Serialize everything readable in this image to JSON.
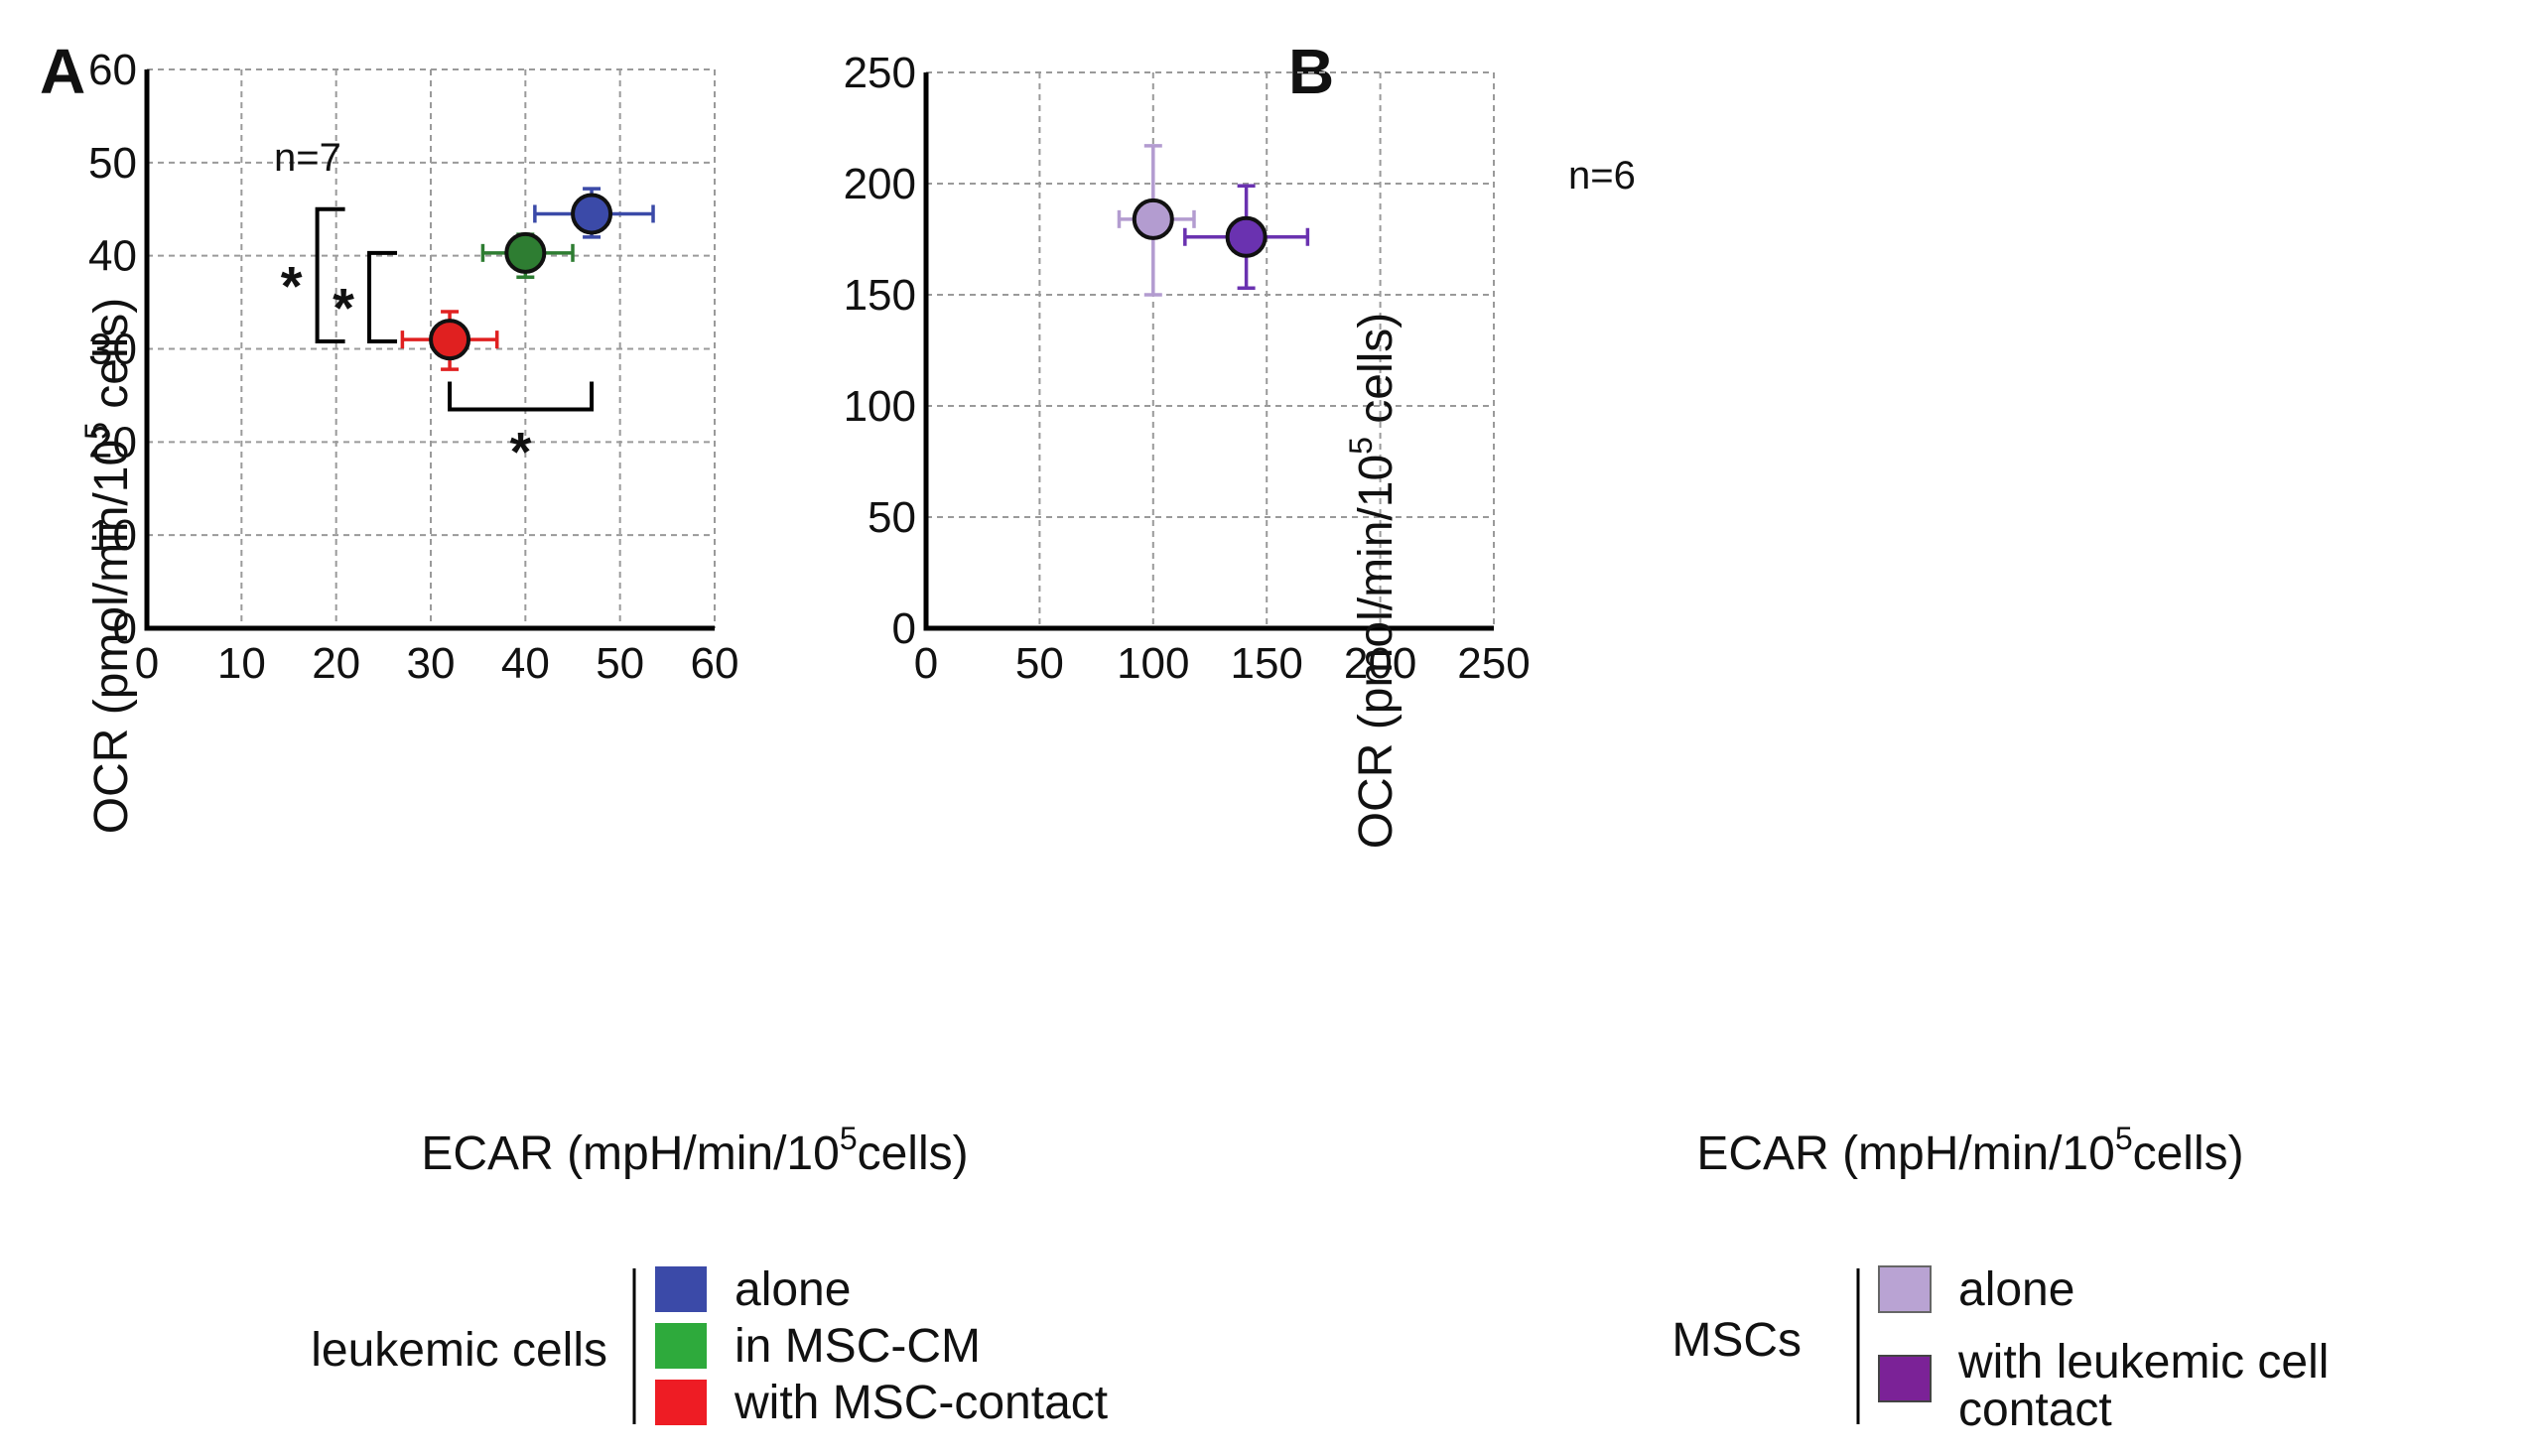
{
  "chart_data": [
    {
      "type": "scatter",
      "panel": "A",
      "xlabel_main": "ECAR (mpH/min/10",
      "xlabel_sup": "5",
      "xlabel_tail": "cells)",
      "ylabel_main": "OCR (pmol/min/10",
      "ylabel_sup": "5",
      "ylabel_tail": " cells)",
      "xlim": [
        0,
        60
      ],
      "ylim": [
        0,
        60
      ],
      "xticks": [
        "0",
        "10",
        "20",
        "30",
        "40",
        "50",
        "60"
      ],
      "yticks": [
        "0",
        "10",
        "20",
        "30",
        "40",
        "50",
        "60"
      ],
      "grid": true,
      "annotation": "n=7",
      "series": [
        {
          "name": "alone",
          "color": "#3b4aa8",
          "x": 47,
          "y": 44.5,
          "xerr": [
            41,
            53.5
          ],
          "yerr": [
            42,
            47.2
          ]
        },
        {
          "name": "in MSC-CM",
          "color": "#2e7d32",
          "x": 40,
          "y": 40.3,
          "xerr": [
            35.5,
            45
          ],
          "yerr": [
            37.7,
            42.3
          ]
        },
        {
          "name": "with MSC-contact",
          "color": "#e02020",
          "x": 32,
          "y": 31,
          "xerr": [
            27,
            37
          ],
          "yerr": [
            27.8,
            34
          ]
        }
      ],
      "significance": [
        {
          "label": "*",
          "orientation": "vertical",
          "from": 30.8,
          "to": 45,
          "at_x": 18
        },
        {
          "label": "*",
          "orientation": "vertical",
          "from": 30.8,
          "to": 40.3,
          "at_x": 23.5
        },
        {
          "label": "*",
          "orientation": "horizontal",
          "from": 32,
          "to": 47,
          "at_y": 23.5
        }
      ],
      "legend": {
        "group_label": "leukemic cells",
        "entries": [
          {
            "label": "alone",
            "color": "#3b4aa8"
          },
          {
            "label": "in MSC-CM",
            "color": "#2eaa3c"
          },
          {
            "label": "with MSC-contact",
            "color": "#ee1c24"
          }
        ]
      }
    },
    {
      "type": "scatter",
      "panel": "B",
      "xlabel_main": "ECAR (mpH/min/10",
      "xlabel_sup": "5",
      "xlabel_tail": "cells)",
      "ylabel_main": "OCR (pmol/min/10",
      "ylabel_sup": "5",
      "ylabel_tail": " cells)",
      "xlim": [
        0,
        250
      ],
      "ylim": [
        0,
        250
      ],
      "xticks": [
        "0",
        "50",
        "100",
        "150",
        "200",
        "250"
      ],
      "yticks": [
        "0",
        "50",
        "100",
        "150",
        "200",
        "250"
      ],
      "grid": true,
      "annotation": "n=6",
      "series": [
        {
          "name": "alone",
          "color": "#b39cd0",
          "x": 100,
          "y": 184,
          "xerr": [
            85,
            118
          ],
          "yerr": [
            150,
            217
          ]
        },
        {
          "name": "with leukemic cell contact",
          "color": "#6a32b0",
          "x": 141,
          "y": 176,
          "xerr": [
            114,
            168
          ],
          "yerr": [
            153,
            199
          ]
        }
      ],
      "legend": {
        "group_label": "MSCs",
        "entries": [
          {
            "label_lines": [
              "alone"
            ],
            "color": "#b9a3d3"
          },
          {
            "label_lines": [
              "with leukemic cell",
              "contact"
            ],
            "color": "#7b2297"
          }
        ]
      }
    }
  ]
}
